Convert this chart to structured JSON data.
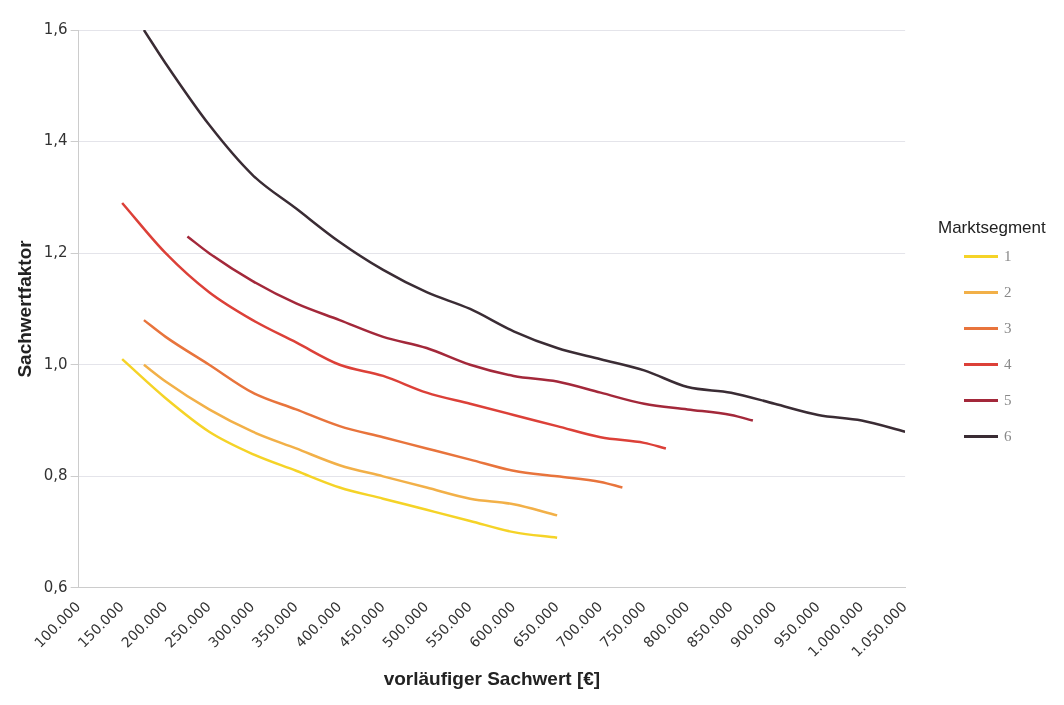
{
  "chart_data": {
    "type": "line",
    "xlabel": "vorläufiger Sachwert [€]",
    "ylabel": "Sachwertfaktor",
    "legend_title": "Marktsegment",
    "legend": "right",
    "grid": "y",
    "marker": "none",
    "line_style": "solid",
    "xlim": [
      100000,
      1050000
    ],
    "xticks": [
      {
        "value": 100000,
        "label": "100.000"
      },
      {
        "value": 150000,
        "label": "150.000"
      },
      {
        "value": 200000,
        "label": "200.000"
      },
      {
        "value": 250000,
        "label": "250.000"
      },
      {
        "value": 300000,
        "label": "300.000"
      },
      {
        "value": 350000,
        "label": "350.000"
      },
      {
        "value": 400000,
        "label": "400.000"
      },
      {
        "value": 450000,
        "label": "450.000"
      },
      {
        "value": 500000,
        "label": "500.000"
      },
      {
        "value": 550000,
        "label": "550.000"
      },
      {
        "value": 600000,
        "label": "600.000"
      },
      {
        "value": 650000,
        "label": "650.000"
      },
      {
        "value": 700000,
        "label": "700.000"
      },
      {
        "value": 750000,
        "label": "750.000"
      },
      {
        "value": 800000,
        "label": "800.000"
      },
      {
        "value": 850000,
        "label": "850.000"
      },
      {
        "value": 900000,
        "label": "900.000"
      },
      {
        "value": 950000,
        "label": "950.000"
      },
      {
        "value": 1000000,
        "label": "1.000.000"
      },
      {
        "value": 1050000,
        "label": "1.050.000"
      }
    ],
    "ylim": [
      0.6,
      1.6
    ],
    "yticks": [
      {
        "value": 0.6,
        "label": "0,6"
      },
      {
        "value": 0.8,
        "label": "0,8"
      },
      {
        "value": 1.0,
        "label": "1,0"
      },
      {
        "value": 1.2,
        "label": "1,2"
      },
      {
        "value": 1.4,
        "label": "1,4"
      },
      {
        "value": 1.6,
        "label": "1,6"
      }
    ],
    "series": [
      {
        "name": "1",
        "color": "#f5d327",
        "x": [
          150000,
          200000,
          250000,
          300000,
          350000,
          400000,
          450000,
          500000,
          550000,
          600000,
          650000
        ],
        "values": [
          1.01,
          0.94,
          0.88,
          0.84,
          0.81,
          0.78,
          0.76,
          0.74,
          0.72,
          0.7,
          0.69
        ]
      },
      {
        "name": "2",
        "color": "#f2b048",
        "x": [
          175000,
          200000,
          250000,
          300000,
          350000,
          400000,
          450000,
          500000,
          550000,
          600000,
          650000
        ],
        "values": [
          1.0,
          0.97,
          0.92,
          0.88,
          0.85,
          0.82,
          0.8,
          0.78,
          0.76,
          0.75,
          0.73
        ]
      },
      {
        "name": "3",
        "color": "#e8743c",
        "x": [
          175000,
          200000,
          250000,
          300000,
          350000,
          400000,
          450000,
          500000,
          550000,
          600000,
          650000,
          700000,
          725000
        ],
        "values": [
          1.08,
          1.05,
          1.0,
          0.95,
          0.92,
          0.89,
          0.87,
          0.85,
          0.83,
          0.81,
          0.8,
          0.79,
          0.78
        ]
      },
      {
        "name": "4",
        "color": "#dc4038",
        "x": [
          150000,
          200000,
          250000,
          300000,
          350000,
          400000,
          450000,
          500000,
          550000,
          600000,
          650000,
          700000,
          750000,
          775000
        ],
        "values": [
          1.29,
          1.2,
          1.13,
          1.08,
          1.04,
          1.0,
          0.98,
          0.95,
          0.93,
          0.91,
          0.89,
          0.87,
          0.86,
          0.85
        ]
      },
      {
        "name": "5",
        "color": "#a3283a",
        "x": [
          225000,
          250000,
          300000,
          350000,
          400000,
          450000,
          500000,
          550000,
          600000,
          650000,
          700000,
          750000,
          800000,
          850000,
          875000
        ],
        "values": [
          1.23,
          1.2,
          1.15,
          1.11,
          1.08,
          1.05,
          1.03,
          1.0,
          0.98,
          0.97,
          0.95,
          0.93,
          0.92,
          0.91,
          0.9
        ]
      },
      {
        "name": "6",
        "color": "#3a2c34",
        "x": [
          175000,
          200000,
          250000,
          300000,
          350000,
          400000,
          450000,
          500000,
          550000,
          600000,
          650000,
          700000,
          750000,
          800000,
          850000,
          900000,
          950000,
          1000000,
          1050000
        ],
        "values": [
          1.6,
          1.54,
          1.43,
          1.34,
          1.28,
          1.22,
          1.17,
          1.13,
          1.1,
          1.06,
          1.03,
          1.01,
          0.99,
          0.96,
          0.95,
          0.93,
          0.91,
          0.9,
          0.88
        ]
      }
    ]
  }
}
